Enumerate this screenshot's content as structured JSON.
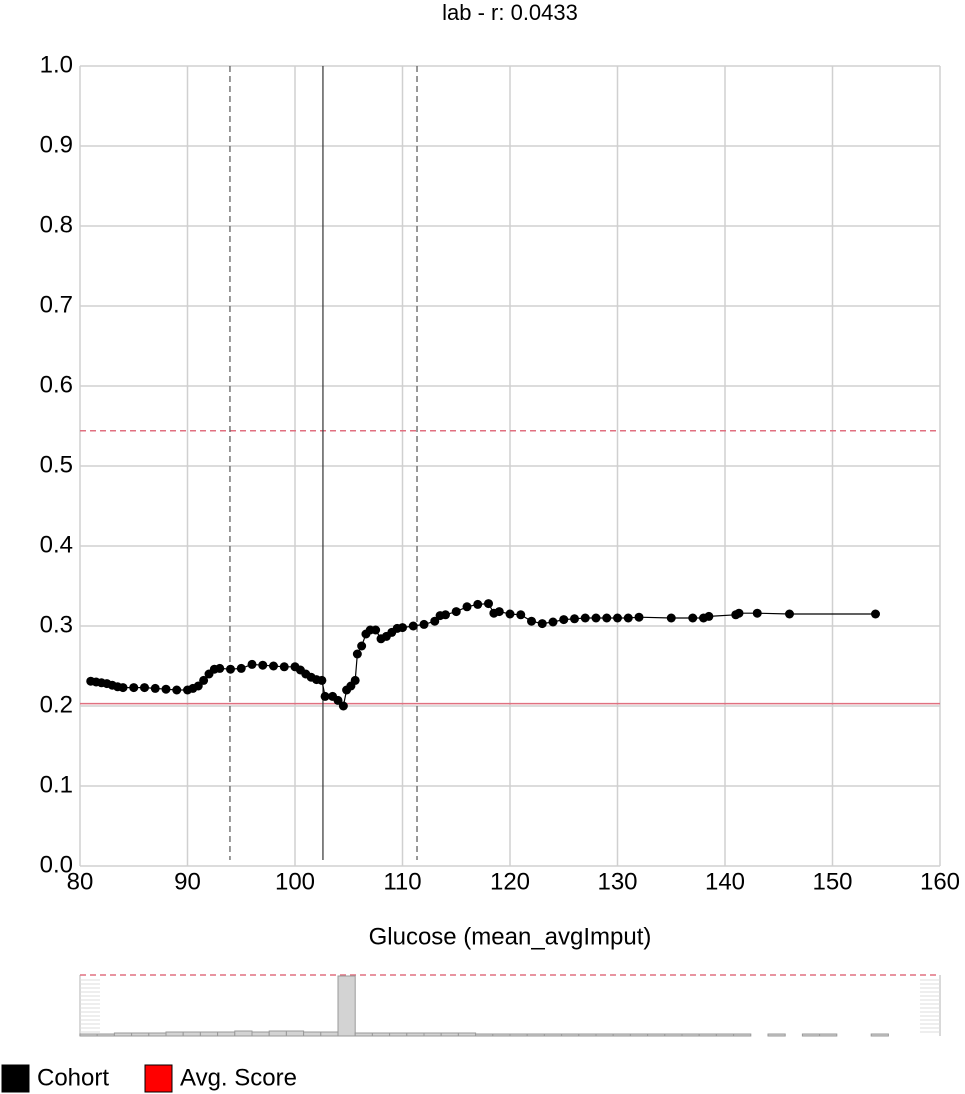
{
  "chart_data": [
    {
      "type": "line",
      "title": "lab - r: 0.0433",
      "x_label": "Glucose (mean_avgImput)",
      "x": [
        81,
        81.5,
        82,
        82.5,
        83,
        83.5,
        84,
        85,
        86,
        87,
        88,
        89,
        90,
        90.5,
        91,
        91.5,
        92,
        92.5,
        93,
        94,
        95,
        96,
        97,
        98,
        99,
        100,
        100.5,
        101,
        101.5,
        102,
        102.5,
        102.8,
        103.5,
        104,
        104.5,
        104.8,
        105.2,
        105.6,
        105.8,
        106.2,
        106.6,
        107,
        107.5,
        108,
        108.5,
        109,
        109.5,
        110,
        111,
        112,
        113,
        113.5,
        114,
        115,
        116,
        117,
        118,
        118.5,
        119,
        120,
        121,
        122,
        123,
        124,
        125,
        126,
        127,
        128,
        129,
        130,
        131,
        132,
        135,
        137,
        138,
        138.5,
        141,
        141.3,
        143,
        146,
        154
      ],
      "values": [
        0.231,
        0.23,
        0.229,
        0.228,
        0.226,
        0.224,
        0.223,
        0.223,
        0.223,
        0.222,
        0.221,
        0.22,
        0.22,
        0.222,
        0.225,
        0.232,
        0.24,
        0.246,
        0.247,
        0.246,
        0.247,
        0.252,
        0.251,
        0.25,
        0.249,
        0.249,
        0.245,
        0.24,
        0.236,
        0.233,
        0.232,
        0.212,
        0.212,
        0.207,
        0.2,
        0.22,
        0.225,
        0.232,
        0.265,
        0.275,
        0.29,
        0.295,
        0.295,
        0.284,
        0.287,
        0.292,
        0.297,
        0.298,
        0.3,
        0.302,
        0.306,
        0.313,
        0.314,
        0.318,
        0.324,
        0.327,
        0.328,
        0.316,
        0.318,
        0.315,
        0.314,
        0.306,
        0.303,
        0.305,
        0.308,
        0.309,
        0.31,
        0.31,
        0.31,
        0.31,
        0.31,
        0.311,
        0.31,
        0.31,
        0.31,
        0.312,
        0.314,
        0.316,
        0.316,
        0.315,
        0.315
      ],
      "color": "#000000",
      "xlim": [
        80,
        160
      ],
      "xticks": [
        80,
        90,
        100,
        110,
        120,
        130,
        140,
        150,
        160
      ],
      "ylim": [
        0,
        1
      ],
      "yticks": [
        {
          "value": 0,
          "label": "0.0"
        },
        0.1,
        0.2,
        0.3,
        0.4,
        0.5,
        0.6,
        0.7,
        0.8,
        0.9,
        {
          "value": 1,
          "label": "1.0"
        }
      ],
      "grid": true,
      "vlines": [
        {
          "value": 93.95,
          "style": "dashed",
          "color": "#555555"
        },
        {
          "value": 102.6,
          "style": "solid",
          "color": "#333333"
        },
        {
          "value": 111.35,
          "style": "dashed",
          "color": "#555555"
        }
      ],
      "hlines": [
        {
          "value": 0.544,
          "style": "dashed",
          "color": "#e07080"
        },
        {
          "value": 0.203,
          "style": "solid",
          "color": "#e07080"
        }
      ],
      "legend": [
        {
          "name": "Cohort",
          "color": "#000000"
        },
        {
          "name": "Avg. Score",
          "color": "#ff0000"
        }
      ]
    },
    {
      "type": "histogram",
      "bins": [
        80,
        81.6,
        83.2,
        84.8,
        86.4,
        88,
        89.6,
        91.2,
        92.8,
        94.4,
        96,
        97.6,
        99.2,
        100.8,
        102.4,
        104,
        105.6,
        107.2,
        108.8,
        110.4,
        112,
        113.6,
        115.2,
        116.8,
        118.4,
        120,
        121.6,
        123.2,
        124.8,
        126.4,
        128,
        129.6,
        131.2,
        132.8,
        134.4,
        136,
        137.6,
        139.2,
        140.8,
        142.4,
        144,
        145.6,
        147.2,
        148.8,
        150.4,
        152,
        153.6,
        155.2,
        156.8,
        158.4,
        160
      ],
      "values": [
        2,
        2,
        3,
        3,
        3,
        4,
        4,
        4,
        4,
        5,
        4,
        5,
        5,
        4,
        4,
        60,
        3,
        3,
        3,
        3,
        3,
        3,
        3,
        2,
        2,
        2,
        2,
        2,
        2,
        2,
        2,
        2,
        2,
        2,
        2,
        2,
        2,
        2,
        2,
        0,
        2,
        0,
        2,
        2,
        0,
        0,
        2,
        0,
        0,
        0
      ],
      "color": "#d3d3d3"
    }
  ]
}
